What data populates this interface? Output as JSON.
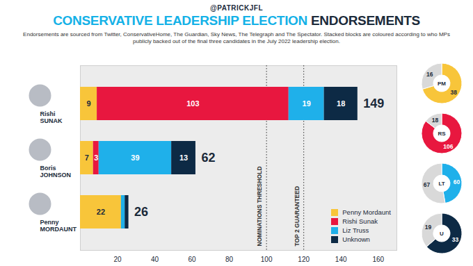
{
  "chart_data": {
    "type": "bar",
    "orientation": "horizontal",
    "stacked": true,
    "data_labels": true,
    "grid": false,
    "legend": "bottom-right",
    "credit": "@PATRICKJFL",
    "title": "CONSERVATIVE LEADERSHIP ELECTION ENDORSEMENTS",
    "subtitle": "Endorsements are sourced from Twitter, ConservativeHome, The Guardian, Sky News, The Telegraph and The Spectator. Stacked blocks are coloured according to who MPs publicly backed out of the final three candidates in the July 2022 leadership election.",
    "categories": [
      "Rishi SUNAK",
      "Boris JOHNSON",
      "Penny MORDAUNT"
    ],
    "series": [
      {
        "name": "Penny Mordaunt",
        "color": "#f8c53a",
        "values": [
          9,
          7,
          22
        ],
        "value_labels": [
          "9",
          "7",
          "22"
        ]
      },
      {
        "name": "Rishi Sunak",
        "color": "#e8173f",
        "values": [
          103,
          3,
          0
        ],
        "value_labels": [
          "103",
          "3",
          null
        ]
      },
      {
        "name": "Liz Truss",
        "color": "#1fb0ea",
        "values": [
          19,
          39,
          2
        ],
        "value_labels": [
          "19",
          "39",
          null
        ]
      },
      {
        "name": "Unknown",
        "color": "#0d2a45",
        "values": [
          18,
          13,
          2
        ],
        "value_labels": [
          "18",
          "13",
          null
        ]
      }
    ],
    "totals": [
      149,
      62,
      26
    ],
    "thresholds": [
      {
        "value": 100,
        "label": "NOMINATIONS THRESHOLD"
      },
      {
        "value": 120,
        "label": "TOP 2 GUARANTEED"
      }
    ],
    "xlim": [
      0,
      170
    ],
    "xticks": [
      20,
      40,
      60,
      80,
      100,
      120,
      140,
      160
    ],
    "donuts": [
      {
        "label": "PM",
        "values": [
          38,
          16
        ]
      },
      {
        "label": "RS",
        "values": [
          106,
          18
        ]
      },
      {
        "label": "LT",
        "values": [
          60,
          67
        ]
      },
      {
        "label": "U",
        "values": [
          33,
          19
        ]
      }
    ]
  }
}
